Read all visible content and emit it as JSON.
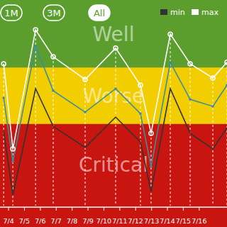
{
  "controls": {
    "ranges": [
      "1M",
      "3M",
      "All"
    ],
    "selected": "All"
  },
  "chart_data": {
    "type": "line",
    "x": [
      3.69,
      4.27,
      5.7,
      6.81,
      8.82,
      10.74,
      12.3,
      12.97,
      14.18,
      15.43,
      16.86,
      17.75
    ],
    "xlim": [
      3.46,
      17.75
    ],
    "xticks": [
      {
        "value": 4,
        "label": "7/4"
      },
      {
        "value": 5,
        "label": "7/5"
      },
      {
        "value": 6,
        "label": "7/6"
      },
      {
        "value": 7,
        "label": "7/7"
      },
      {
        "value": 8,
        "label": "7/8"
      },
      {
        "value": 9,
        "label": "7/9"
      },
      {
        "value": 10,
        "label": "7/10"
      },
      {
        "value": 11,
        "label": "7/11"
      },
      {
        "value": 12,
        "label": "7/12"
      },
      {
        "value": 13,
        "label": "7/13"
      },
      {
        "value": 14,
        "label": "7/14"
      },
      {
        "value": 15,
        "label": "7/15"
      },
      {
        "value": 16,
        "label": "7/16"
      }
    ],
    "ylim": [
      0,
      100
    ],
    "tick_labels": "x",
    "grid": false,
    "legend": "top-right",
    "bands": [
      {
        "label": "Well",
        "from": 67.2,
        "to": 100,
        "color": "#5c9e2e"
      },
      {
        "label": "Worse",
        "from": 39.7,
        "to": 67.2,
        "color": "#f2cd00"
      },
      {
        "label": "Critical",
        "from": 0,
        "to": 39.7,
        "color": "#c8150f"
      }
    ],
    "series": [
      {
        "name": "min",
        "color": "#333333",
        "marker": "none",
        "values": [
          36.2,
          5.2,
          56.9,
          38.6,
          28.3,
          43.1,
          31.0,
          6.9,
          56.9,
          35.2,
          27.6,
          37.9
        ]
      },
      {
        "color": "#3a8f9a",
        "marker": "dot",
        "values": [
          52.4,
          21.4,
          77.6,
          55.9,
          45.5,
          56.9,
          44.8,
          19.0,
          69.7,
          51.7,
          48.3,
          58.6
        ]
      },
      {
        "name": "max",
        "color": "#ffffff",
        "marker": "circle",
        "values": [
          69.0,
          27.6,
          85.5,
          72.4,
          61.4,
          76.6,
          58.6,
          35.2,
          83.4,
          69.0,
          62.1,
          69.7
        ]
      }
    ]
  }
}
